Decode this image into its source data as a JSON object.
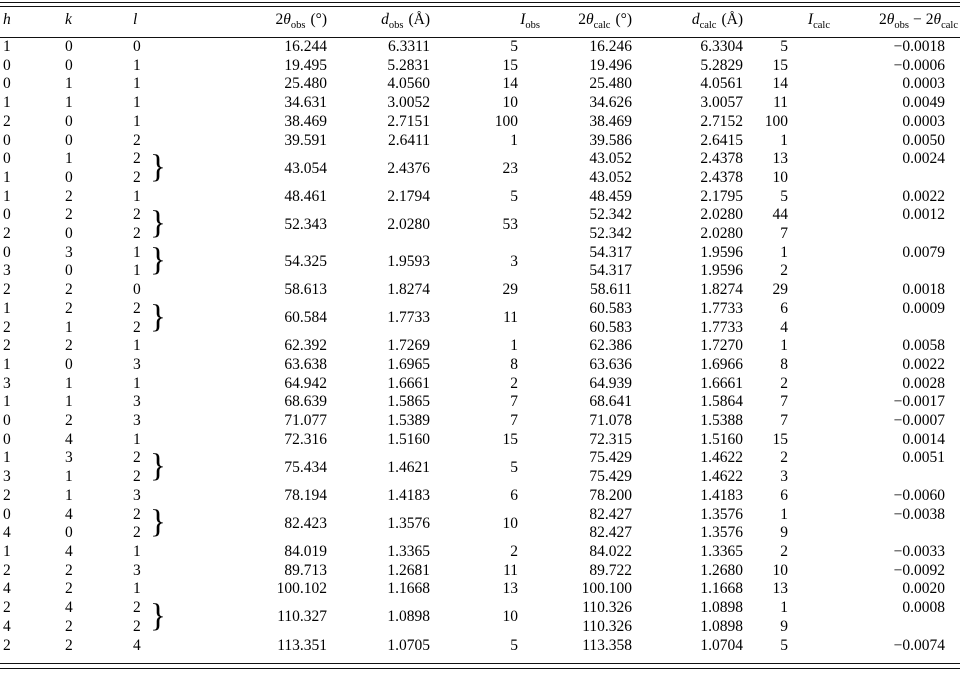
{
  "colors": {
    "background": "#ffffff",
    "text": "#000000",
    "rule": "#111111"
  },
  "table": {
    "brace_glyph": "}",
    "columns": {
      "h": "h",
      "k": "k",
      "l": "l",
      "two": "2",
      "theta": "θ",
      "d": "d",
      "intensity": "I",
      "sub_obs": "obs",
      "sub_calc": "calc",
      "unit_deg": "(°)",
      "unit_angstrom": "(Å)",
      "minus": "−"
    },
    "rows": [
      {
        "h": "1",
        "k": "0",
        "l": "0",
        "obs": [
          "16.244",
          "6.3311",
          "5"
        ],
        "calc": [
          "16.246",
          "6.3304",
          "5"
        ],
        "diff": "−0.0018"
      },
      {
        "h": "0",
        "k": "0",
        "l": "1",
        "obs": [
          "19.495",
          "5.2831",
          "15"
        ],
        "calc": [
          "19.496",
          "5.2829",
          "15"
        ],
        "diff": "−0.0006"
      },
      {
        "h": "0",
        "k": "1",
        "l": "1",
        "obs": [
          "25.480",
          "4.0560",
          "14"
        ],
        "calc": [
          "25.480",
          "4.0561",
          "14"
        ],
        "diff": "0.0003"
      },
      {
        "h": "1",
        "k": "1",
        "l": "1",
        "obs": [
          "34.631",
          "3.0052",
          "10"
        ],
        "calc": [
          "34.626",
          "3.0057",
          "11"
        ],
        "diff": "0.0049"
      },
      {
        "h": "2",
        "k": "0",
        "l": "1",
        "obs": [
          "38.469",
          "2.7151",
          "100"
        ],
        "calc": [
          "38.469",
          "2.7152",
          "100"
        ],
        "diff": "0.0003"
      },
      {
        "h": "0",
        "k": "0",
        "l": "2",
        "obs": [
          "39.591",
          "2.6411",
          "1"
        ],
        "calc": [
          "39.586",
          "2.6415",
          "1"
        ],
        "diff": "0.0050"
      },
      {
        "group": true,
        "lines": [
          {
            "h": "0",
            "k": "1",
            "l": "2",
            "calc": [
              "43.052",
              "2.4378",
              "13"
            ]
          },
          {
            "h": "1",
            "k": "0",
            "l": "2",
            "calc": [
              "43.052",
              "2.4378",
              "10"
            ]
          }
        ],
        "obs": [
          "43.054",
          "2.4376",
          "23"
        ],
        "diff": "0.0024"
      },
      {
        "h": "1",
        "k": "2",
        "l": "1",
        "obs": [
          "48.461",
          "2.1794",
          "5"
        ],
        "calc": [
          "48.459",
          "2.1795",
          "5"
        ],
        "diff": "0.0022"
      },
      {
        "group": true,
        "lines": [
          {
            "h": "0",
            "k": "2",
            "l": "2",
            "calc": [
              "52.342",
              "2.0280",
              "44"
            ]
          },
          {
            "h": "2",
            "k": "0",
            "l": "2",
            "calc": [
              "52.342",
              "2.0280",
              "7"
            ]
          }
        ],
        "obs": [
          "52.343",
          "2.0280",
          "53"
        ],
        "diff": "0.0012"
      },
      {
        "group": true,
        "lines": [
          {
            "h": "0",
            "k": "3",
            "l": "1",
            "calc": [
              "54.317",
              "1.9596",
              "1"
            ]
          },
          {
            "h": "3",
            "k": "0",
            "l": "1",
            "calc": [
              "54.317",
              "1.9596",
              "2"
            ]
          }
        ],
        "obs": [
          "54.325",
          "1.9593",
          "3"
        ],
        "diff": "0.0079"
      },
      {
        "h": "2",
        "k": "2",
        "l": "0",
        "obs": [
          "58.613",
          "1.8274",
          "29"
        ],
        "calc": [
          "58.611",
          "1.8274",
          "29"
        ],
        "diff": "0.0018"
      },
      {
        "group": true,
        "lines": [
          {
            "h": "1",
            "k": "2",
            "l": "2",
            "calc": [
              "60.583",
              "1.7733",
              "6"
            ]
          },
          {
            "h": "2",
            "k": "1",
            "l": "2",
            "calc": [
              "60.583",
              "1.7733",
              "4"
            ]
          }
        ],
        "obs": [
          "60.584",
          "1.7733",
          "11"
        ],
        "diff": "0.0009"
      },
      {
        "h": "2",
        "k": "2",
        "l": "1",
        "obs": [
          "62.392",
          "1.7269",
          "1"
        ],
        "calc": [
          "62.386",
          "1.7270",
          "1"
        ],
        "diff": "0.0058"
      },
      {
        "h": "1",
        "k": "0",
        "l": "3",
        "obs": [
          "63.638",
          "1.6965",
          "8"
        ],
        "calc": [
          "63.636",
          "1.6966",
          "8"
        ],
        "diff": "0.0022"
      },
      {
        "h": "3",
        "k": "1",
        "l": "1",
        "obs": [
          "64.942",
          "1.6661",
          "2"
        ],
        "calc": [
          "64.939",
          "1.6661",
          "2"
        ],
        "diff": "0.0028"
      },
      {
        "h": "1",
        "k": "1",
        "l": "3",
        "obs": [
          "68.639",
          "1.5865",
          "7"
        ],
        "calc": [
          "68.641",
          "1.5864",
          "7"
        ],
        "diff": "−0.0017"
      },
      {
        "h": "0",
        "k": "2",
        "l": "3",
        "obs": [
          "71.077",
          "1.5389",
          "7"
        ],
        "calc": [
          "71.078",
          "1.5388",
          "7"
        ],
        "diff": "−0.0007"
      },
      {
        "h": "0",
        "k": "4",
        "l": "1",
        "obs": [
          "72.316",
          "1.5160",
          "15"
        ],
        "calc": [
          "72.315",
          "1.5160",
          "15"
        ],
        "diff": "0.0014"
      },
      {
        "group": true,
        "lines": [
          {
            "h": "1",
            "k": "3",
            "l": "2",
            "calc": [
              "75.429",
              "1.4622",
              "2"
            ]
          },
          {
            "h": "3",
            "k": "1",
            "l": "2",
            "calc": [
              "75.429",
              "1.4622",
              "3"
            ]
          }
        ],
        "obs": [
          "75.434",
          "1.4621",
          "5"
        ],
        "diff": "0.0051"
      },
      {
        "h": "2",
        "k": "1",
        "l": "3",
        "obs": [
          "78.194",
          "1.4183",
          "6"
        ],
        "calc": [
          "78.200",
          "1.4183",
          "6"
        ],
        "diff": "−0.0060"
      },
      {
        "group": true,
        "lines": [
          {
            "h": "0",
            "k": "4",
            "l": "2",
            "calc": [
              "82.427",
              "1.3576",
              "1"
            ]
          },
          {
            "h": "4",
            "k": "0",
            "l": "2",
            "calc": [
              "82.427",
              "1.3576",
              "9"
            ]
          }
        ],
        "obs": [
          "82.423",
          "1.3576",
          "10"
        ],
        "diff": "−0.0038"
      },
      {
        "h": "1",
        "k": "4",
        "l": "1",
        "obs": [
          "84.019",
          "1.3365",
          "2"
        ],
        "calc": [
          "84.022",
          "1.3365",
          "2"
        ],
        "diff": "−0.0033"
      },
      {
        "h": "2",
        "k": "2",
        "l": "3",
        "obs": [
          "89.713",
          "1.2681",
          "11"
        ],
        "calc": [
          "89.722",
          "1.2680",
          "10"
        ],
        "diff": "−0.0092"
      },
      {
        "h": "4",
        "k": "2",
        "l": "1",
        "obs": [
          "100.102",
          "1.1668",
          "13"
        ],
        "calc": [
          "100.100",
          "1.1668",
          "13"
        ],
        "diff": "0.0020"
      },
      {
        "group": true,
        "lines": [
          {
            "h": "2",
            "k": "4",
            "l": "2",
            "calc": [
              "110.326",
              "1.0898",
              "1"
            ]
          },
          {
            "h": "4",
            "k": "2",
            "l": "2",
            "calc": [
              "110.326",
              "1.0898",
              "9"
            ]
          }
        ],
        "obs": [
          "110.327",
          "1.0898",
          "10"
        ],
        "diff": "0.0008"
      },
      {
        "h": "2",
        "k": "2",
        "l": "4",
        "obs": [
          "113.351",
          "1.0705",
          "5"
        ],
        "calc": [
          "113.358",
          "1.0704",
          "5"
        ],
        "diff": "−0.0074"
      }
    ]
  }
}
